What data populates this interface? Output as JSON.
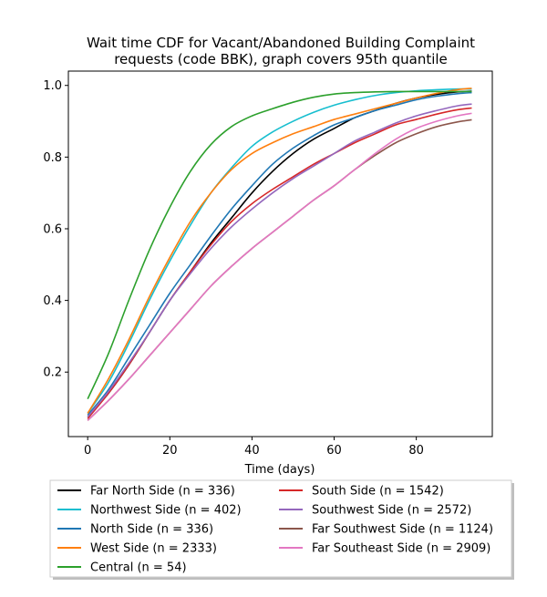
{
  "chart_data": {
    "type": "line",
    "title_lines": [
      "Wait time CDF for Vacant/Abandoned Building Complaint",
      "requests (code BBK), graph covers 95th quantile"
    ],
    "xlabel": "Time (days)",
    "ylabel": "",
    "xlim": [
      -4.7,
      98.5
    ],
    "ylim": [
      0.02,
      1.04
    ],
    "xticks": [
      0,
      20,
      40,
      60,
      80
    ],
    "yticks": [
      0.2,
      0.4,
      0.6,
      0.8,
      1.0
    ],
    "ytick_labels": [
      "0.2",
      "0.4",
      "0.6",
      "0.8",
      "1.0"
    ],
    "grid": false,
    "legend_placement": "below plot, two columns",
    "series": [
      {
        "name": "Far North Side (n = 336)",
        "color": "#000000",
        "x": [
          0,
          5,
          10,
          15,
          20,
          25,
          30,
          35,
          40,
          45,
          50,
          55,
          60,
          65,
          70,
          75,
          80,
          85,
          90,
          93.5
        ],
        "y": [
          0.075,
          0.14,
          0.22,
          0.31,
          0.4,
          0.48,
          0.56,
          0.63,
          0.7,
          0.76,
          0.81,
          0.85,
          0.88,
          0.91,
          0.93,
          0.95,
          0.965,
          0.975,
          0.982,
          0.984
        ]
      },
      {
        "name": "Northwest Side (n = 402)",
        "color": "#17becf",
        "x": [
          0,
          5,
          10,
          15,
          20,
          25,
          30,
          35,
          40,
          45,
          50,
          55,
          60,
          65,
          70,
          75,
          80,
          85,
          90,
          93.5
        ],
        "y": [
          0.085,
          0.17,
          0.28,
          0.4,
          0.51,
          0.61,
          0.7,
          0.77,
          0.83,
          0.87,
          0.9,
          0.925,
          0.945,
          0.96,
          0.972,
          0.98,
          0.985,
          0.988,
          0.99,
          0.99
        ]
      },
      {
        "name": "North Side (n = 336)",
        "color": "#1f77b4",
        "x": [
          0,
          5,
          10,
          15,
          20,
          25,
          30,
          35,
          40,
          45,
          50,
          55,
          60,
          65,
          70,
          75,
          80,
          85,
          90,
          93.5
        ],
        "y": [
          0.08,
          0.15,
          0.24,
          0.33,
          0.42,
          0.5,
          0.58,
          0.655,
          0.72,
          0.78,
          0.825,
          0.86,
          0.89,
          0.91,
          0.93,
          0.945,
          0.96,
          0.97,
          0.977,
          0.98
        ]
      },
      {
        "name": "West Side (n = 2333)",
        "color": "#ff7f0e",
        "x": [
          0,
          5,
          10,
          15,
          20,
          25,
          30,
          35,
          40,
          45,
          50,
          55,
          60,
          65,
          70,
          75,
          80,
          85,
          90,
          93.5
        ],
        "y": [
          0.085,
          0.18,
          0.29,
          0.41,
          0.52,
          0.62,
          0.7,
          0.765,
          0.81,
          0.84,
          0.865,
          0.885,
          0.905,
          0.92,
          0.935,
          0.95,
          0.965,
          0.978,
          0.988,
          0.992
        ]
      },
      {
        "name": "Central (n = 54)",
        "color": "#2ca02c",
        "x": [
          0,
          5,
          10,
          15,
          20,
          25,
          30,
          35,
          40,
          45,
          50,
          55,
          60,
          65,
          70,
          75,
          80,
          85,
          90,
          93.5
        ],
        "y": [
          0.125,
          0.25,
          0.4,
          0.54,
          0.66,
          0.76,
          0.835,
          0.885,
          0.915,
          0.935,
          0.953,
          0.967,
          0.976,
          0.98,
          0.982,
          0.983,
          0.983,
          0.983,
          0.983,
          0.983
        ]
      },
      {
        "name": "South Side (n = 1542)",
        "color": "#d62728",
        "x": [
          0,
          5,
          10,
          15,
          20,
          25,
          30,
          35,
          40,
          45,
          50,
          55,
          60,
          65,
          70,
          75,
          80,
          85,
          90,
          93.5
        ],
        "y": [
          0.07,
          0.14,
          0.22,
          0.31,
          0.4,
          0.48,
          0.555,
          0.62,
          0.67,
          0.71,
          0.745,
          0.78,
          0.81,
          0.84,
          0.865,
          0.89,
          0.905,
          0.92,
          0.932,
          0.937
        ]
      },
      {
        "name": "Southwest Side (n = 2572)",
        "color": "#9467bd",
        "x": [
          0,
          5,
          10,
          15,
          20,
          25,
          30,
          35,
          40,
          45,
          50,
          55,
          60,
          65,
          70,
          75,
          80,
          85,
          90,
          93.5
        ],
        "y": [
          0.075,
          0.145,
          0.225,
          0.31,
          0.4,
          0.475,
          0.545,
          0.605,
          0.655,
          0.7,
          0.74,
          0.775,
          0.81,
          0.845,
          0.87,
          0.895,
          0.915,
          0.93,
          0.943,
          0.948
        ]
      },
      {
        "name": "Far Southwest Side (n = 1124)",
        "color": "#8c564b",
        "x": [
          0,
          5,
          10,
          15,
          20,
          25,
          30,
          35,
          40,
          45,
          50,
          55,
          60,
          65,
          70,
          75,
          80,
          85,
          90,
          93.5
        ],
        "y": [
          0.065,
          0.12,
          0.18,
          0.245,
          0.31,
          0.375,
          0.44,
          0.495,
          0.545,
          0.59,
          0.635,
          0.68,
          0.72,
          0.765,
          0.805,
          0.84,
          0.865,
          0.885,
          0.898,
          0.904
        ]
      },
      {
        "name": "Far Southeast Side (n = 2909)",
        "color": "#e377c2",
        "x": [
          0,
          5,
          10,
          15,
          20,
          25,
          30,
          35,
          40,
          45,
          50,
          55,
          60,
          65,
          70,
          75,
          80,
          85,
          90,
          93.5
        ],
        "y": [
          0.065,
          0.12,
          0.18,
          0.245,
          0.31,
          0.375,
          0.44,
          0.495,
          0.545,
          0.59,
          0.635,
          0.68,
          0.72,
          0.765,
          0.81,
          0.85,
          0.88,
          0.9,
          0.915,
          0.922
        ]
      }
    ]
  }
}
